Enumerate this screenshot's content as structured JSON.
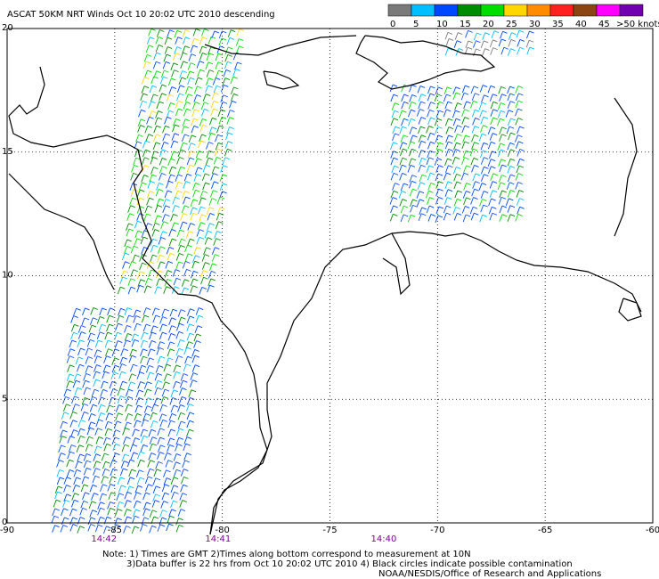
{
  "header": {
    "title": "ASCAT 50KM NRT Winds   Oct 10 20:02 UTC 2010 descending"
  },
  "legend": {
    "labels": [
      0,
      5,
      10,
      15,
      20,
      25,
      30,
      35,
      40,
      45,
      ">50 knots"
    ],
    "colors": [
      "#7a7a7a",
      "#00bfff",
      "#0048ff",
      "#008c00",
      "#00dd00",
      "#ffd700",
      "#ff8c00",
      "#ff2020",
      "#8b4513",
      "#ff00ff",
      "#7000b0"
    ]
  },
  "map": {
    "xlim": [
      -90,
      -60
    ],
    "xticks": [
      -90,
      -85,
      -80,
      -75,
      -70,
      -65,
      -60
    ],
    "ylim": [
      0,
      20
    ],
    "yticks": [
      0,
      5,
      10,
      15,
      20
    ]
  },
  "times": [
    {
      "label": "14:42",
      "lon": -85.5
    },
    {
      "label": "14:41",
      "lon": -80.2
    },
    {
      "label": "14:40",
      "lon": -72.5
    }
  ],
  "notes": [
    "Note: 1) Times are GMT 2)Times along bottom correspond to measurement at 10N",
    "3)Data buffer is 22 hrs from Oct 10 20:02 UTC 2010 4) Black circles indicate possible contamination",
    "NOAA/NESDIS/Office of Research and Applications"
  ]
}
